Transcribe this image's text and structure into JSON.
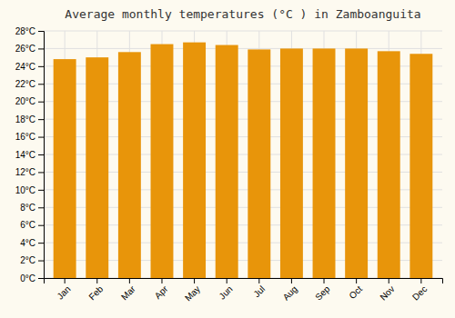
{
  "chart_data": {
    "type": "bar",
    "title": "Average monthly temperatures (°C ) in Zamboanguita",
    "categories": [
      "Jan",
      "Feb",
      "Mar",
      "Apr",
      "May",
      "Jun",
      "Jul",
      "Aug",
      "Sep",
      "Oct",
      "Nov",
      "Dec"
    ],
    "values": [
      24.8,
      25.0,
      25.6,
      26.5,
      26.7,
      26.4,
      25.9,
      26.0,
      26.0,
      26.0,
      25.7,
      25.4
    ],
    "color": "#E8950A",
    "ylim": [
      0,
      28
    ],
    "yticks": [
      {
        "value": 0,
        "label": "0°C"
      },
      {
        "value": 2,
        "label": "2°C"
      },
      {
        "value": 4,
        "label": "4°C"
      },
      {
        "value": 6,
        "label": "6°C"
      },
      {
        "value": 8,
        "label": "8°C"
      },
      {
        "value": 10,
        "label": "10°C"
      },
      {
        "value": 12,
        "label": "12°C"
      },
      {
        "value": 14,
        "label": "14°C"
      },
      {
        "value": 16,
        "label": "16°C"
      },
      {
        "value": 18,
        "label": "18°C"
      },
      {
        "value": 20,
        "label": "20°C"
      },
      {
        "value": 22,
        "label": "22°C"
      },
      {
        "value": 24,
        "label": "24°C"
      },
      {
        "value": 26,
        "label": "26°C"
      },
      {
        "value": 28,
        "label": "28°C"
      }
    ],
    "grid": true
  }
}
